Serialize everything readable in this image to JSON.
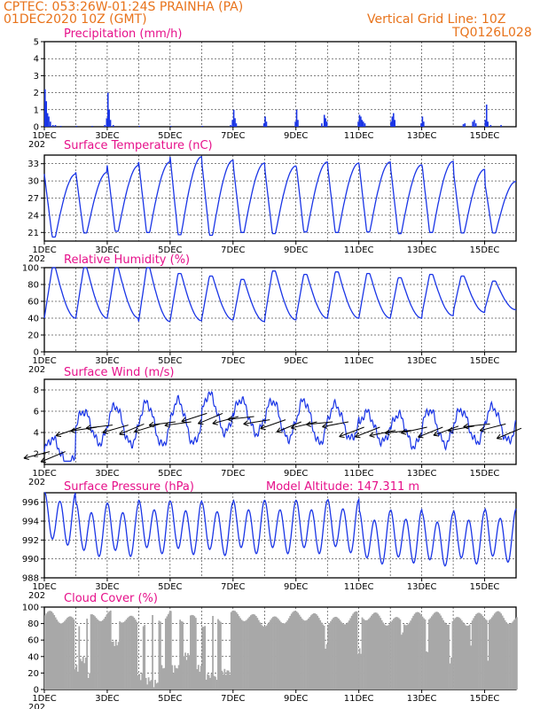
{
  "header": {
    "line1": "CPTEC:   053:26W-01:24S   PRAINHA (PA)",
    "line2": "01DEC2020 10Z (GMT)",
    "right1": "Vertical Grid Line: 10Z",
    "right2": "TQ0126L028"
  },
  "colors": {
    "header": "#e8731b",
    "panel_title": "#e6108a",
    "series": "#1a35e6",
    "cloud": "#a8a8a8",
    "wind_arrow": "#000000"
  },
  "x_ticks": [
    "1DEC",
    "3DEC",
    "5DEC",
    "7DEC",
    "9DEC",
    "11DEC",
    "13DEC",
    "15DEC"
  ],
  "x_year_fragment": "202",
  "chart_data": [
    {
      "id": "precip",
      "type": "bar",
      "title": "Precipitation (mm/h)",
      "ylim": [
        0,
        5
      ],
      "yticks": [
        0,
        1,
        2,
        3,
        4,
        5
      ],
      "points": [
        [
          0.0,
          2.2
        ],
        [
          0.04,
          1.5
        ],
        [
          0.08,
          0.8
        ],
        [
          0.12,
          0.6
        ],
        [
          0.17,
          0.3
        ],
        [
          0.25,
          0.1
        ],
        [
          0.33,
          0.1
        ],
        [
          0.5,
          0.05
        ],
        [
          1.0,
          0.05
        ],
        [
          1.5,
          0.05
        ],
        [
          1.9,
          0.1
        ],
        [
          1.96,
          0.5
        ],
        [
          2.0,
          2.0
        ],
        [
          2.04,
          1.0
        ],
        [
          2.08,
          0.4
        ],
        [
          2.17,
          0.1
        ],
        [
          3.0,
          0.05
        ],
        [
          4.0,
          0.05
        ],
        [
          5.0,
          0.05
        ],
        [
          5.9,
          0.1
        ],
        [
          5.96,
          0.4
        ],
        [
          6.0,
          1.0
        ],
        [
          6.04,
          0.5
        ],
        [
          6.08,
          0.2
        ],
        [
          6.96,
          0.2
        ],
        [
          7.0,
          0.6
        ],
        [
          7.04,
          0.3
        ],
        [
          7.96,
          0.3
        ],
        [
          8.0,
          1.0
        ],
        [
          8.04,
          0.4
        ],
        [
          8.8,
          0.2
        ],
        [
          8.88,
          0.7
        ],
        [
          8.92,
          0.5
        ],
        [
          8.96,
          0.3
        ],
        [
          9.96,
          0.3
        ],
        [
          10.0,
          0.7
        ],
        [
          10.04,
          0.6
        ],
        [
          10.08,
          0.4
        ],
        [
          10.12,
          0.3
        ],
        [
          10.17,
          0.2
        ],
        [
          11.0,
          0.3
        ],
        [
          11.04,
          0.6
        ],
        [
          11.08,
          0.8
        ],
        [
          11.12,
          0.4
        ],
        [
          11.96,
          0.2
        ],
        [
          12.0,
          0.6
        ],
        [
          12.04,
          0.3
        ],
        [
          13.3,
          0.15
        ],
        [
          13.35,
          0.2
        ],
        [
          13.6,
          0.3
        ],
        [
          13.65,
          0.4
        ],
        [
          13.7,
          0.2
        ],
        [
          14.0,
          0.4
        ],
        [
          14.04,
          1.3
        ],
        [
          14.08,
          0.3
        ],
        [
          14.17,
          0.1
        ],
        [
          14.5,
          0.1
        ]
      ]
    },
    {
      "id": "temp",
      "type": "line",
      "title": "Surface Temperature (nC)",
      "ylim": [
        19.5,
        34.5
      ],
      "yticks": [
        21,
        24,
        27,
        30,
        33
      ],
      "daily_min": [
        20.2,
        20.9,
        21.2,
        21.0,
        20.6,
        20.5,
        21.0,
        20.8,
        21.1,
        21.0,
        21.1,
        20.8,
        21.0,
        20.9,
        20.9,
        20.9
      ],
      "daily_max": [
        31.2,
        31.5,
        32.7,
        33.3,
        34.2,
        33.6,
        33.1,
        32.6,
        33.3,
        33.1,
        33.3,
        32.8,
        33.4,
        32.0,
        29.9,
        31.1
      ]
    },
    {
      "id": "rh",
      "type": "line",
      "title": "Relative Humidity (%)",
      "ylim": [
        0,
        100
      ],
      "yticks": [
        0,
        20,
        40,
        60,
        80,
        100
      ],
      "daily_min": [
        40,
        40,
        40,
        36,
        37,
        38,
        36,
        38,
        40,
        40,
        40,
        40,
        43,
        47,
        50,
        52
      ],
      "daily_max": [
        100,
        100,
        100,
        100,
        93,
        90,
        86,
        96,
        92,
        95,
        93,
        88,
        92,
        90,
        84,
        70
      ]
    },
    {
      "id": "wind",
      "type": "line",
      "title": "Surface Wind (m/s)",
      "ylim": [
        1,
        9
      ],
      "yticks": [
        2,
        4,
        6,
        8
      ],
      "daily_base": [
        2.2,
        4.5,
        4.7,
        4.8,
        5.0,
        5.8,
        5.5,
        5.2,
        5.0,
        5.0,
        4.5,
        4.2,
        4.5,
        4.6,
        4.8,
        4.4
      ],
      "daily_amp": [
        1.2,
        1.5,
        1.8,
        2.0,
        2.0,
        1.8,
        1.6,
        1.8,
        2.0,
        1.6,
        1.4,
        1.5,
        1.6,
        1.5,
        1.6,
        1.4
      ],
      "arrows_per_day": 2
    },
    {
      "id": "pressure",
      "type": "line",
      "title": "Surface Pressure (hPa)",
      "annotation": "Model Altitude: 147.311 m",
      "ylim": [
        988,
        997
      ],
      "yticks": [
        988,
        990,
        992,
        994,
        996
      ],
      "daily_mean": [
        994.2,
        993.0,
        993.0,
        993.3,
        993.2,
        993.1,
        993.3,
        993.3,
        993.3,
        993.4,
        992.2,
        992.3,
        992.0,
        992.2,
        992.4,
        991.9
      ]
    },
    {
      "id": "cloud",
      "type": "bar",
      "title": "Cloud Cover (%)",
      "ylim": [
        0,
        100
      ],
      "yticks": [
        0,
        20,
        40,
        60,
        80,
        100
      ],
      "base_level": 86,
      "dips": [
        [
          0.95,
          1.05,
          20
        ],
        [
          1.1,
          1.3,
          30
        ],
        [
          1.35,
          1.45,
          10
        ],
        [
          2.1,
          2.35,
          50
        ],
        [
          2.95,
          3.1,
          10
        ],
        [
          3.2,
          3.4,
          5
        ],
        [
          3.45,
          3.6,
          2
        ],
        [
          3.7,
          3.8,
          20
        ],
        [
          4.0,
          4.25,
          20
        ],
        [
          4.4,
          4.6,
          35
        ],
        [
          4.8,
          5.0,
          20
        ],
        [
          5.1,
          5.3,
          10
        ],
        [
          5.35,
          5.5,
          8
        ],
        [
          5.6,
          5.9,
          15
        ],
        [
          8.9,
          9.0,
          45
        ],
        [
          9.95,
          10.05,
          40
        ],
        [
          11.3,
          11.4,
          60
        ],
        [
          12.1,
          12.2,
          40
        ],
        [
          12.85,
          12.95,
          30
        ],
        [
          13.5,
          13.55,
          45
        ],
        [
          14.05,
          14.1,
          25
        ]
      ]
    }
  ]
}
